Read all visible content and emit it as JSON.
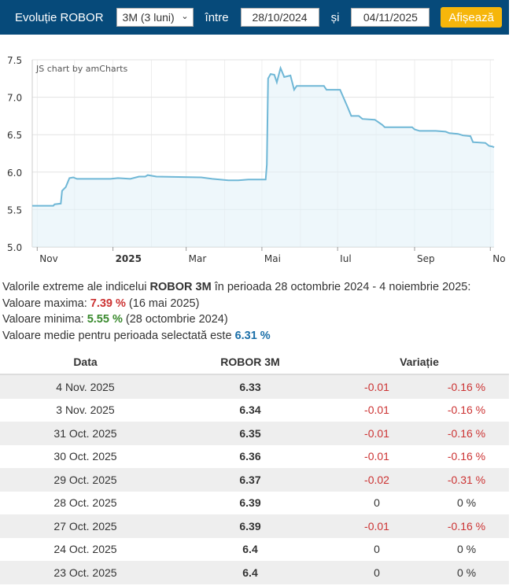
{
  "toolbar": {
    "title": "Evoluție ROBOR",
    "period": "3M (3 luni)",
    "between": "între",
    "from": "28/10/2024",
    "and": "și",
    "to": "04/11/2025",
    "show": "Afișează"
  },
  "chart_data": {
    "type": "area",
    "watermark": "JS chart by amCharts",
    "ylim": [
      5.0,
      7.5
    ],
    "y_ticks": [
      "5.0",
      "5.5",
      "6.0",
      "6.5",
      "7.0",
      "7.5"
    ],
    "x_ticks": [
      {
        "label": "Nov",
        "date": "2024-11-01"
      },
      {
        "label": "2025",
        "date": "2025-01-01"
      },
      {
        "label": "Mar",
        "date": "2025-03-01"
      },
      {
        "label": "Mai",
        "date": "2025-05-01"
      },
      {
        "label": "Iul",
        "date": "2025-07-01"
      },
      {
        "label": "Sep",
        "date": "2025-09-01"
      },
      {
        "label": "No",
        "date": "2025-11-01"
      }
    ],
    "xlim": [
      "2024-10-28",
      "2025-11-04"
    ],
    "series": [
      {
        "name": "ROBOR 3M",
        "color": "#6fb7d6",
        "points": [
          [
            "2024-10-28",
            5.55
          ],
          [
            "2024-11-14",
            5.55
          ],
          [
            "2024-11-15",
            5.57
          ],
          [
            "2024-11-20",
            5.58
          ],
          [
            "2024-11-21",
            5.75
          ],
          [
            "2024-11-24",
            5.8
          ],
          [
            "2024-11-27",
            5.92
          ],
          [
            "2024-11-30",
            5.93
          ],
          [
            "2024-12-03",
            5.91
          ],
          [
            "2024-12-30",
            5.91
          ],
          [
            "2025-01-05",
            5.92
          ],
          [
            "2025-01-15",
            5.91
          ],
          [
            "2025-01-22",
            5.94
          ],
          [
            "2025-01-27",
            5.94
          ],
          [
            "2025-01-29",
            5.96
          ],
          [
            "2025-02-05",
            5.94
          ],
          [
            "2025-03-13",
            5.93
          ],
          [
            "2025-03-22",
            5.91
          ],
          [
            "2025-04-04",
            5.89
          ],
          [
            "2025-04-12",
            5.89
          ],
          [
            "2025-04-20",
            5.9
          ],
          [
            "2025-05-04",
            5.9
          ],
          [
            "2025-05-05",
            6.1
          ],
          [
            "2025-05-06",
            7.25
          ],
          [
            "2025-05-08",
            7.31
          ],
          [
            "2025-05-11",
            7.3
          ],
          [
            "2025-05-13",
            7.2
          ],
          [
            "2025-05-16",
            7.39
          ],
          [
            "2025-05-19",
            7.27
          ],
          [
            "2025-05-24",
            7.29
          ],
          [
            "2025-05-27",
            7.1
          ],
          [
            "2025-05-29",
            7.15
          ],
          [
            "2025-06-20",
            7.15
          ],
          [
            "2025-06-22",
            7.1
          ],
          [
            "2025-07-03",
            7.1
          ],
          [
            "2025-07-09",
            6.87
          ],
          [
            "2025-07-12",
            6.75
          ],
          [
            "2025-07-18",
            6.75
          ],
          [
            "2025-07-21",
            6.71
          ],
          [
            "2025-07-31",
            6.7
          ],
          [
            "2025-08-06",
            6.63
          ],
          [
            "2025-08-08",
            6.6
          ],
          [
            "2025-08-30",
            6.6
          ],
          [
            "2025-09-01",
            6.57
          ],
          [
            "2025-09-05",
            6.55
          ],
          [
            "2025-09-18",
            6.55
          ],
          [
            "2025-09-26",
            6.54
          ],
          [
            "2025-09-29",
            6.52
          ],
          [
            "2025-10-06",
            6.51
          ],
          [
            "2025-10-10",
            6.49
          ],
          [
            "2025-10-16",
            6.48
          ],
          [
            "2025-10-18",
            6.4
          ],
          [
            "2025-10-28",
            6.39
          ],
          [
            "2025-10-31",
            6.35
          ],
          [
            "2025-11-03",
            6.34
          ],
          [
            "2025-11-04",
            6.33
          ]
        ]
      }
    ]
  },
  "stats": {
    "intro_pre": "Valorile extreme ale indicelui ",
    "intro_bold": "ROBOR 3M",
    "intro_post": " în perioada 28 octombrie 2024 - 4 noiembrie 2025:",
    "max_label": "Valoare maxima: ",
    "max_value": "7.39 %",
    "max_date": " (16 mai 2025)",
    "min_label": "Valoare minima: ",
    "min_value": "5.55 %",
    "min_date": " (28 octombrie 2024)",
    "avg_label": "Valoare medie pentru perioada selectată este ",
    "avg_value": "6.31 %"
  },
  "table": {
    "headers": [
      "Data",
      "ROBOR 3M",
      "Variație"
    ],
    "rows": [
      [
        "4 Nov. 2025",
        "6.33",
        "-0.01",
        "-0.16 %"
      ],
      [
        "3 Nov. 2025",
        "6.34",
        "-0.01",
        "-0.16 %"
      ],
      [
        "31 Oct. 2025",
        "6.35",
        "-0.01",
        "-0.16 %"
      ],
      [
        "30 Oct. 2025",
        "6.36",
        "-0.01",
        "-0.16 %"
      ],
      [
        "29 Oct. 2025",
        "6.37",
        "-0.02",
        "-0.31 %"
      ],
      [
        "28 Oct. 2025",
        "6.39",
        "0",
        "0 %"
      ],
      [
        "27 Oct. 2025",
        "6.39",
        "-0.01",
        "-0.16 %"
      ],
      [
        "24 Oct. 2025",
        "6.4",
        "0",
        "0 %"
      ],
      [
        "23 Oct. 2025",
        "6.4",
        "0",
        "0 %"
      ]
    ]
  }
}
